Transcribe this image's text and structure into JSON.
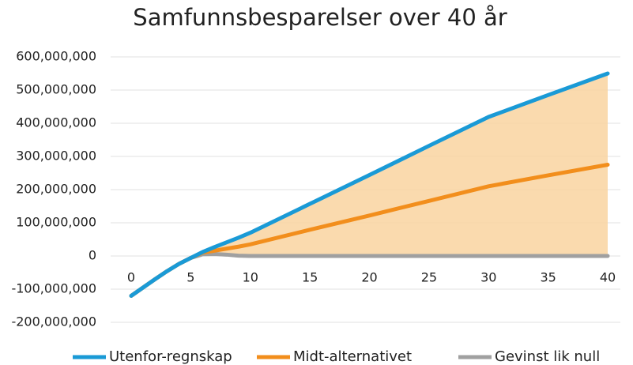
{
  "chart_data": {
    "type": "line",
    "title": "Samfunnsbesparelser over 40 år",
    "x": [
      0,
      1,
      2,
      3,
      4,
      5,
      6,
      7,
      8,
      9,
      10,
      15,
      20,
      25,
      30,
      35,
      40
    ],
    "series": [
      {
        "name": "Utenfor-regnskap",
        "color": "#1a9ad6",
        "values": [
          -120000000,
          -95000000,
          -70000000,
          -46000000,
          -24000000,
          -6000000,
          12000000,
          27000000,
          41000000,
          55000000,
          70000000,
          157000000,
          244000000,
          332000000,
          419000000,
          485000000,
          550000000
        ]
      },
      {
        "name": "Midt-alternativet",
        "color": "#f28e1c",
        "values": [
          -120000000,
          -95000000,
          -70000000,
          -46000000,
          -24000000,
          -6000000,
          10000000,
          16000000,
          22000000,
          28000000,
          35000000,
          79000000,
          122000000,
          166000000,
          210000000,
          243000000,
          275000000
        ]
      },
      {
        "name": "Gevinst lik null",
        "color": "#a0a0a0",
        "values": [
          -120000000,
          -95000000,
          -70000000,
          -46000000,
          -24000000,
          -6000000,
          5000000,
          6000000,
          4000000,
          1000000,
          0,
          0,
          0,
          0,
          0,
          0,
          0
        ]
      }
    ],
    "fill": "#f9d3a0",
    "xlim": [
      0,
      40
    ],
    "xticks": [
      0,
      5,
      10,
      15,
      20,
      25,
      30,
      35,
      40
    ],
    "ylim": [
      -200000000,
      600000000
    ],
    "yticks": [
      {
        "value": -200000000,
        "label": "-200,000,000"
      },
      {
        "value": -100000000,
        "label": "-100,000,000"
      },
      0,
      {
        "value": 100000000,
        "label": "100,000,000"
      },
      {
        "value": 200000000,
        "label": "200,000,000"
      },
      {
        "value": 300000000,
        "label": "300,000,000"
      },
      {
        "value": 400000000,
        "label": "400,000,000"
      },
      {
        "value": 500000000,
        "label": "500,000,000"
      },
      {
        "value": 600000000,
        "label": "600,000,000"
      }
    ],
    "grid": true,
    "legend": "bottom"
  }
}
